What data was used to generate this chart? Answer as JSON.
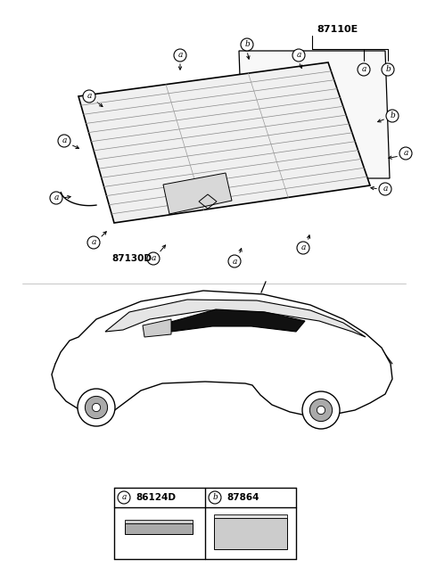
{
  "bg_color": "#ffffff",
  "part_number_main": "87110E",
  "part_number_bottom_left": "87130D",
  "legend_a_code": "86124D",
  "legend_b_code": "87864",
  "fig_width": 4.8,
  "fig_height": 6.55,
  "dpi": 100
}
